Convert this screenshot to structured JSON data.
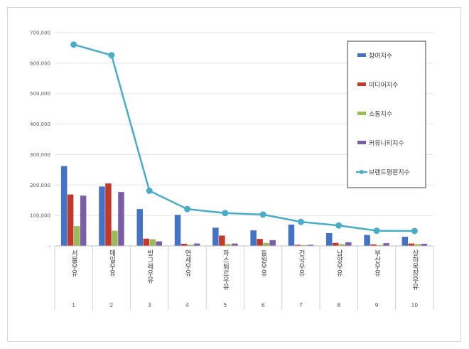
{
  "chart_data": {
    "type": "bar",
    "title": "",
    "xlabel": "",
    "ylabel": "",
    "ylim": [
      0,
      700000
    ],
    "yticks": [
      0,
      100000,
      200000,
      300000,
      400000,
      500000,
      600000,
      700000
    ],
    "ytick_labels": [
      "-",
      "100,000",
      "200,000",
      "300,000",
      "400,000",
      "500,000",
      "600,000",
      "700,000"
    ],
    "grid": true,
    "legend_position": "right",
    "categories": [
      "서울우유",
      "매일우유",
      "빙그레우유",
      "연세우유",
      "파스퇴르우유",
      "동원우유",
      "건국우유",
      "남양우유",
      "부산우유",
      "상하목장우유"
    ],
    "index_labels": [
      "1",
      "2",
      "3",
      "4",
      "5",
      "6",
      "7",
      "8",
      "9",
      "10"
    ],
    "series": [
      {
        "name": "참여지수",
        "type": "bar",
        "color": "#4472c4",
        "values": [
          262000,
          195000,
          121000,
          102000,
          60000,
          51000,
          70000,
          42000,
          36000,
          30000
        ]
      },
      {
        "name": "미디어지수",
        "type": "bar",
        "color": "#c0392b",
        "values": [
          169000,
          205000,
          24000,
          7000,
          34000,
          23000,
          4000,
          10000,
          5000,
          8000
        ]
      },
      {
        "name": "소통지수",
        "type": "bar",
        "color": "#9bbb59",
        "values": [
          65000,
          50000,
          22000,
          4000,
          6000,
          10000,
          3000,
          6000,
          3000,
          6000
        ]
      },
      {
        "name": "커뮤니티지수",
        "type": "bar",
        "color": "#7b5ea7",
        "values": [
          165000,
          177000,
          15000,
          8000,
          8000,
          19000,
          4000,
          12000,
          9000,
          7000
        ]
      },
      {
        "name": "브랜드평판지수",
        "type": "line",
        "color": "#4bacc6",
        "values": [
          661000,
          626000,
          181000,
          121000,
          108000,
          103000,
          79000,
          67000,
          50000,
          49000
        ]
      }
    ]
  }
}
